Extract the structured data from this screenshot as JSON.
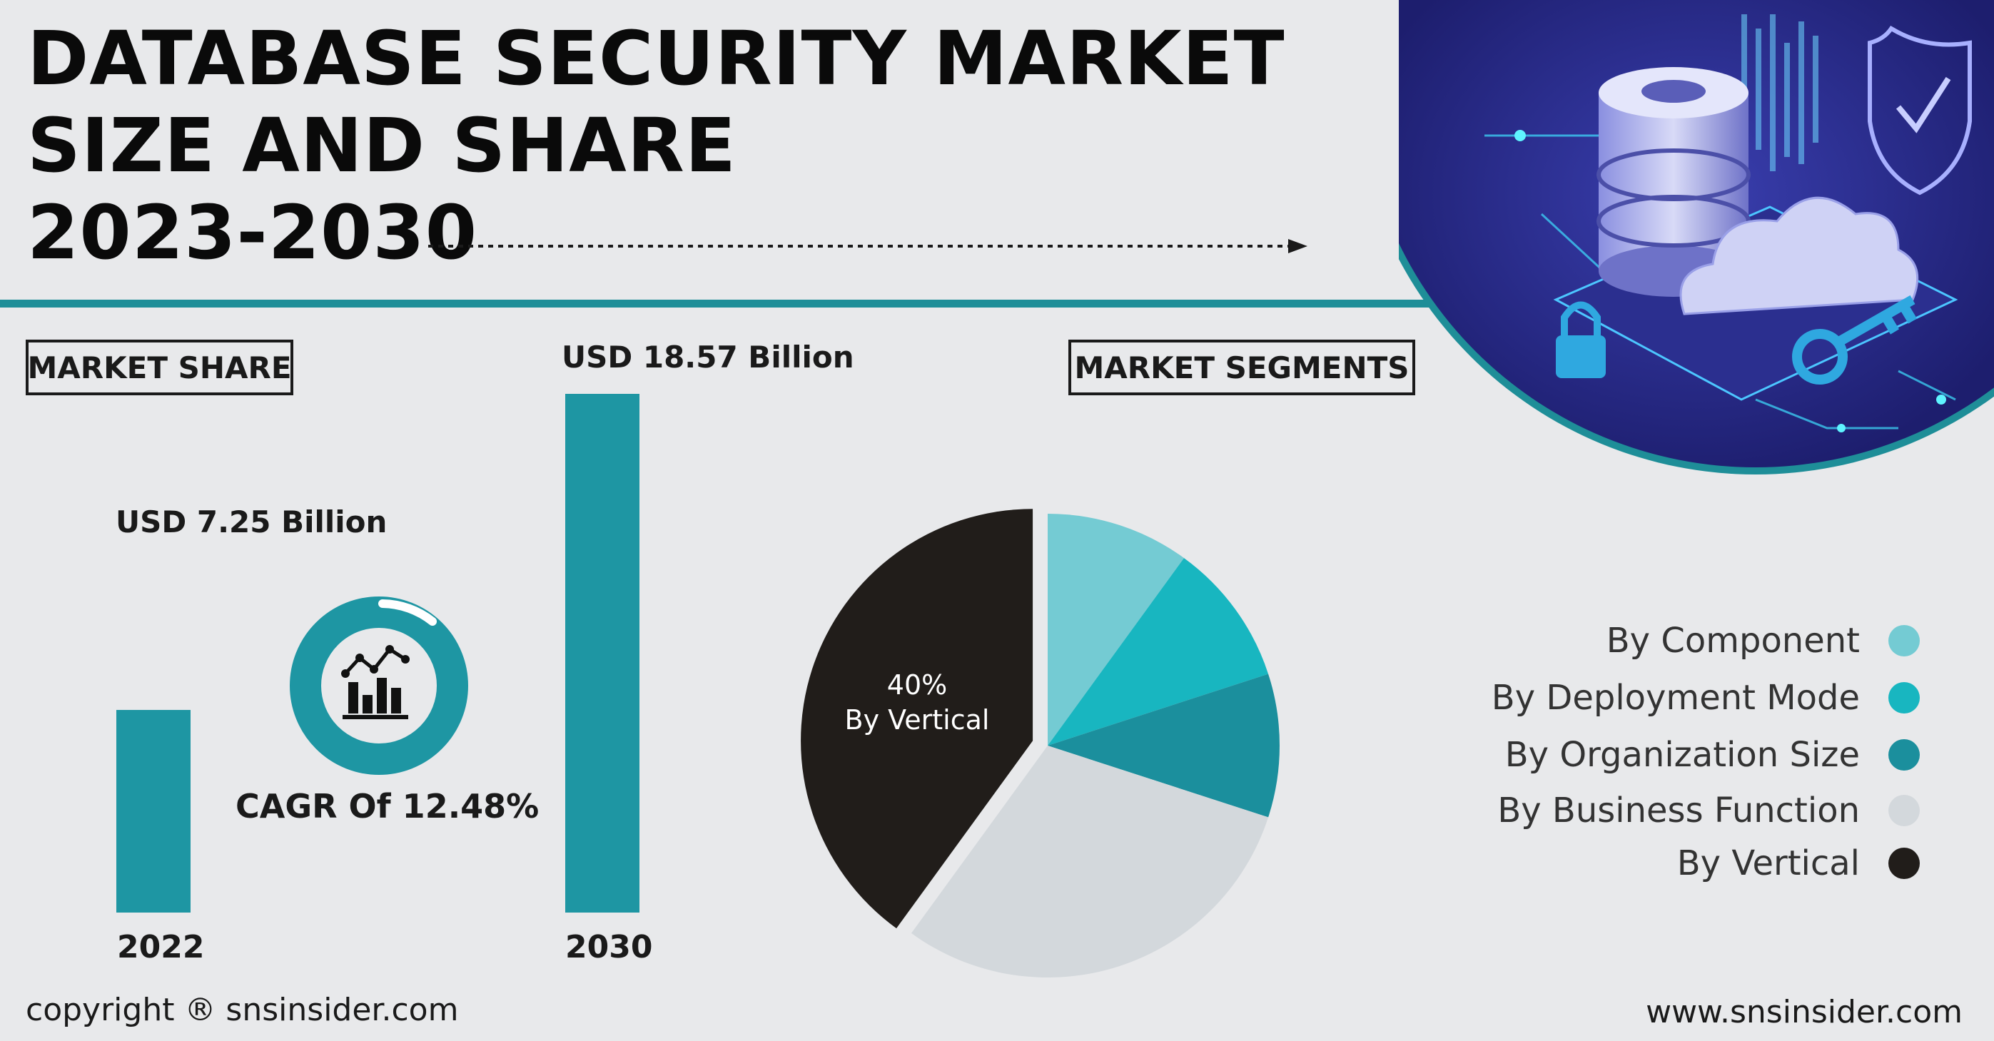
{
  "header": {
    "title_line1": "DATABASE SECURITY MARKET",
    "title_line2": "SIZE AND SHARE",
    "title_line3": "2023-2030"
  },
  "labels": {
    "market_share": "MARKET SHARE",
    "market_segments": "MARKET SEGMENTS",
    "cagr": "CAGR Of 12.48%"
  },
  "colors": {
    "teal": "#1e96a3",
    "accent_line": "#1e8e98",
    "dark": "#211d1a"
  },
  "chart_data": [
    {
      "type": "bar",
      "categories": [
        "2022",
        "2030"
      ],
      "values": [
        7.25,
        18.57
      ],
      "value_labels": [
        "USD 7.25 Billion",
        "USD 18.57 Billion"
      ],
      "ylim": [
        0,
        18.57
      ],
      "color": "#1e96a3"
    },
    {
      "type": "pie",
      "labels": [
        "By Component",
        "By Deployment Mode",
        "By Organization Size",
        "By Business Function",
        "By Vertical"
      ],
      "values": [
        10,
        10,
        10,
        30,
        40
      ],
      "colors": [
        "#74cbd3",
        "#18b6c0",
        "#1b8f9d",
        "#d3d8dc",
        "#211d1a"
      ],
      "annotation_value": "40%",
      "annotation_label": "By Vertical",
      "legend_position": "right"
    }
  ],
  "footer": {
    "copyright": "copyright ® snsinsider.com",
    "website": "www.snsinsider.com"
  }
}
